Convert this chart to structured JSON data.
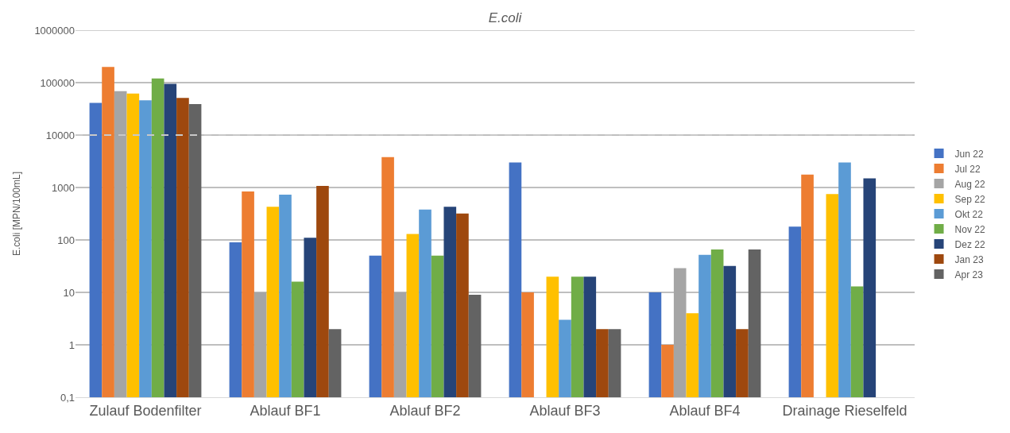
{
  "chart_data": {
    "type": "bar",
    "title": "E.coli",
    "ylabel": "E.coli [MPN/100mL]",
    "categories": [
      "Zulauf Bodenfilter",
      "Ablauf BF1",
      "Ablauf BF2",
      "Ablauf BF3",
      "Ablauf BF4",
      "Drainage Rieselfeld"
    ],
    "series": [
      {
        "name": "Jun 22",
        "color": "#4472c4",
        "values": [
          41000,
          90,
          50,
          3000,
          10,
          180
        ]
      },
      {
        "name": "Jul 22",
        "color": "#ed7d31",
        "values": [
          200000,
          840,
          3800,
          10,
          1,
          1770
        ]
      },
      {
        "name": "Aug 22",
        "color": "#a5a5a5",
        "values": [
          69000,
          10,
          10,
          null,
          29,
          null
        ]
      },
      {
        "name": "Sep 22",
        "color": "#ffc000",
        "values": [
          62000,
          430,
          130,
          20,
          4,
          750
        ]
      },
      {
        "name": "Okt 22",
        "color": "#5b9bd5",
        "values": [
          46000,
          730,
          380,
          3,
          52,
          3000
        ]
      },
      {
        "name": "Nov 22",
        "color": "#70ad47",
        "values": [
          120000,
          16,
          50,
          20,
          66,
          13
        ]
      },
      {
        "name": "Dez 22",
        "color": "#264478",
        "values": [
          95000,
          110,
          430,
          20,
          32,
          1500
        ]
      },
      {
        "name": "Jan 23",
        "color": "#9e480e",
        "values": [
          51000,
          1070,
          320,
          2,
          2,
          null
        ]
      },
      {
        "name": "Apr 23",
        "color": "#636363",
        "values": [
          39000,
          2,
          9,
          2,
          66,
          null
        ]
      }
    ],
    "log": "y",
    "ylim": [
      0.1,
      1000000
    ],
    "yticks": [
      {
        "value": 0.1,
        "label": "0,1"
      },
      1,
      10,
      100,
      1000,
      10000,
      100000,
      1000000
    ],
    "ref_lines": [
      {
        "axis": "y",
        "value": 10000,
        "color": "#c8c8c8",
        "line_style": "dashed"
      }
    ],
    "grid": "y",
    "legend": "right"
  }
}
